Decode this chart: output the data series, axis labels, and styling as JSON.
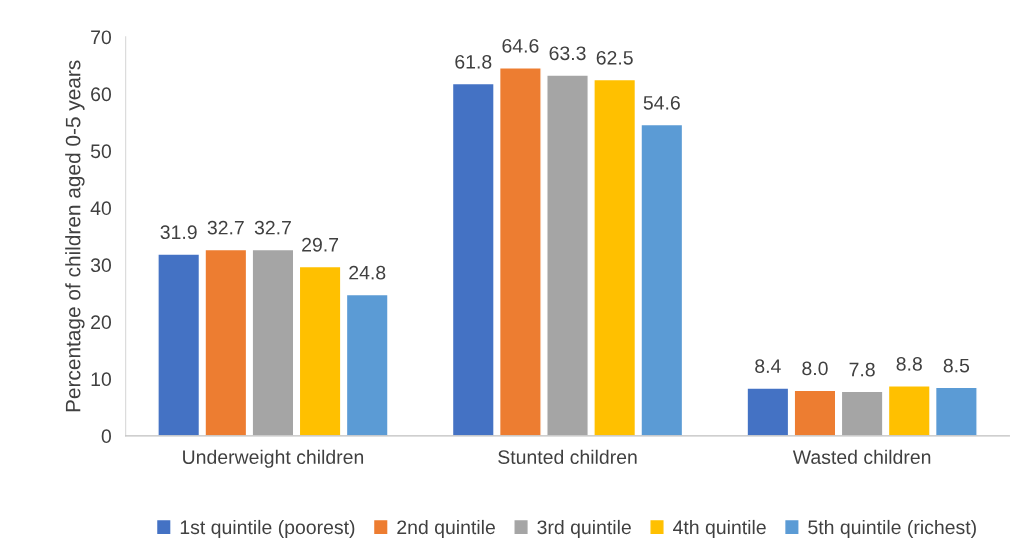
{
  "chart_data": {
    "type": "bar",
    "ylabel": "Percentage of children aged 0-5 years",
    "categories": [
      "Underweight children",
      "Stunted children",
      "Wasted children"
    ],
    "series": [
      {
        "name": "1st quintile (poorest)",
        "color": "#4472c4",
        "values": [
          31.9,
          61.8,
          8.4
        ],
        "value_labels": [
          "31.9",
          "61.8",
          "8.4"
        ]
      },
      {
        "name": "2nd quintile",
        "color": "#ed7d31",
        "values": [
          32.7,
          64.6,
          8.0
        ],
        "value_labels": [
          "32.7",
          "64.6",
          "8.0"
        ]
      },
      {
        "name": "3rd quintile",
        "color": "#a5a5a5",
        "values": [
          32.7,
          63.3,
          7.8
        ],
        "value_labels": [
          "32.7",
          "63.3",
          "7.8"
        ]
      },
      {
        "name": "4th quintile",
        "color": "#ffc000",
        "values": [
          29.7,
          62.5,
          8.8
        ],
        "value_labels": [
          "29.7",
          "62.5",
          "8.8"
        ]
      },
      {
        "name": "5th quintile (richest)",
        "color": "#5b9bd5",
        "values": [
          24.8,
          54.6,
          8.5
        ],
        "value_labels": [
          "24.8",
          "54.6",
          "8.5"
        ]
      }
    ],
    "ylim": [
      0,
      70
    ],
    "yticks": [
      0,
      10,
      20,
      30,
      40,
      50,
      60,
      70
    ],
    "grid": false,
    "legend": "bottom"
  }
}
